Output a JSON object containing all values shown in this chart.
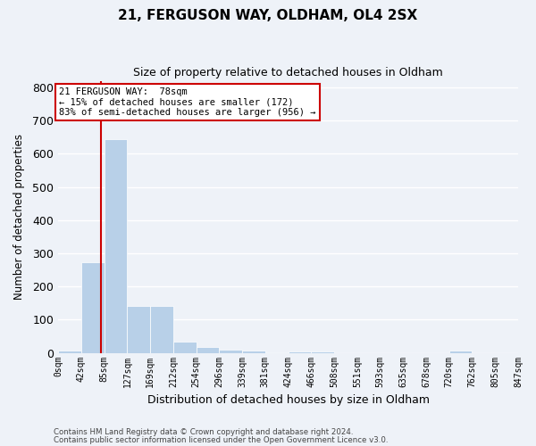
{
  "title1": "21, FERGUSON WAY, OLDHAM, OL4 2SX",
  "title2": "Size of property relative to detached houses in Oldham",
  "xlabel": "Distribution of detached houses by size in Oldham",
  "ylabel": "Number of detached properties",
  "footer1": "Contains HM Land Registry data © Crown copyright and database right 2024.",
  "footer2": "Contains public sector information licensed under the Open Government Licence v3.0.",
  "annotation_title": "21 FERGUSON WAY:  78sqm",
  "annotation_line2": "← 15% of detached houses are smaller (172)",
  "annotation_line3": "83% of semi-detached houses are larger (956) →",
  "property_size_sqm": 78,
  "bar_color": "#b8d0e8",
  "red_line_color": "#cc0000",
  "annotation_box_color": "#ffffff",
  "annotation_box_edge": "#cc0000",
  "bins": [
    0,
    42,
    85,
    127,
    169,
    212,
    254,
    296,
    339,
    381,
    424,
    466,
    508,
    551,
    593,
    635,
    678,
    720,
    762,
    805,
    847
  ],
  "values": [
    7,
    272,
    644,
    142,
    142,
    35,
    17,
    10,
    7,
    3,
    5,
    5,
    0,
    0,
    0,
    0,
    0,
    6,
    0,
    0
  ],
  "ylim": [
    0,
    820
  ],
  "xlim_left": 0,
  "xlim_right": 847,
  "tick_labels": [
    "0sqm",
    "42sqm",
    "85sqm",
    "127sqm",
    "169sqm",
    "212sqm",
    "254sqm",
    "296sqm",
    "339sqm",
    "381sqm",
    "424sqm",
    "466sqm",
    "508sqm",
    "551sqm",
    "593sqm",
    "635sqm",
    "678sqm",
    "720sqm",
    "762sqm",
    "805sqm",
    "847sqm"
  ],
  "background_color": "#eef2f8",
  "grid_color": "#ffffff",
  "title1_fontsize": 11,
  "title2_fontsize": 9
}
